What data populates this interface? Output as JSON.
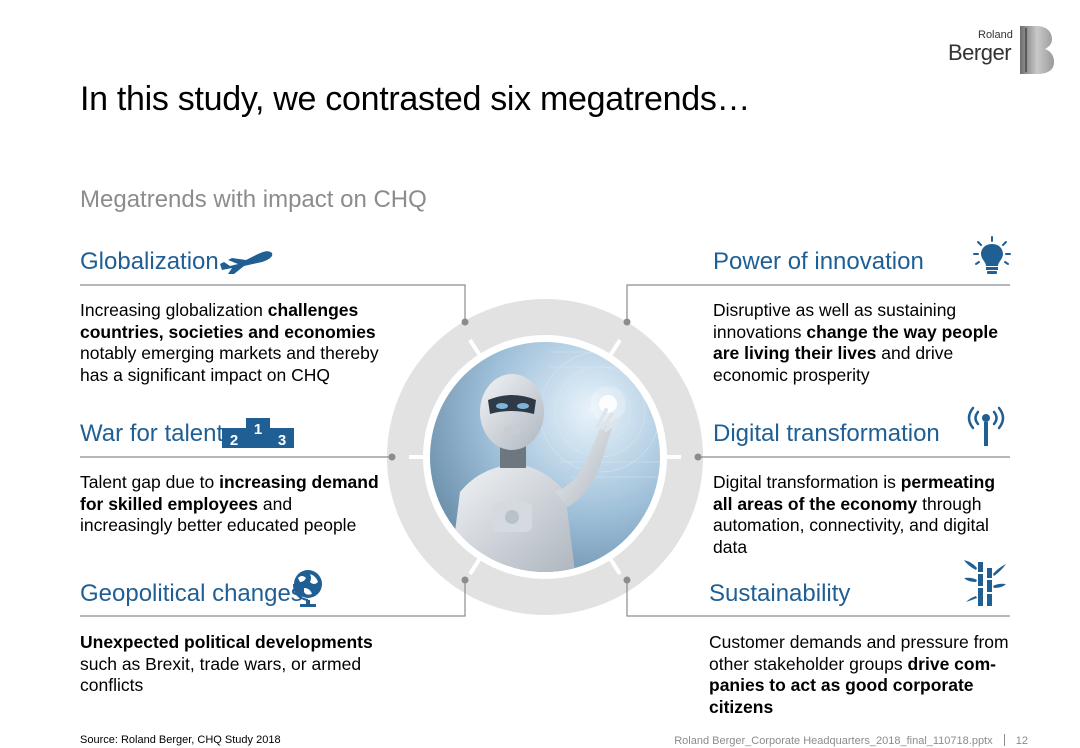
{
  "logo": {
    "small": "Roland",
    "big": "Berger"
  },
  "title": "In this study, we contrasted six megatrends…",
  "subtitle": "Megatrends with impact on CHQ",
  "trends": [
    {
      "title": "Globalization",
      "icon": "airplane-icon",
      "text": [
        {
          "t": "Increasing globalization ",
          "b": false
        },
        {
          "t": "challenges countries, societies and economies",
          "b": true
        },
        {
          "t": " notably emerging markets and thereby has a significant impact on CHQ",
          "b": false
        }
      ]
    },
    {
      "title": "War for talent",
      "icon": "podium-icon",
      "podium": [
        "2",
        "1",
        "3"
      ],
      "text": [
        {
          "t": "Talent gap due to ",
          "b": false
        },
        {
          "t": "increasing demand for skilled employees",
          "b": true
        },
        {
          "t": " and increasingly better educated people",
          "b": false
        }
      ]
    },
    {
      "title": "Geopolitical changes",
      "icon": "globe-icon",
      "text": [
        {
          "t": "Unexpected political developments",
          "b": true
        },
        {
          "t": " such as Brexit, trade wars, or armed conflicts",
          "b": false
        }
      ]
    },
    {
      "title": "Power of innovation",
      "icon": "lightbulb-icon",
      "text": [
        {
          "t": "Disruptive as well as sustaining innovations ",
          "b": false
        },
        {
          "t": "change the way people are living their lives",
          "b": true
        },
        {
          "t": " and drive economic prosperity",
          "b": false
        }
      ]
    },
    {
      "title": "Digital transformation",
      "icon": "antenna-icon",
      "text": [
        {
          "t": "Digital transformation is ",
          "b": false
        },
        {
          "t": "permeating all areas of the economy",
          "b": true
        },
        {
          "t": " through automation, connectivity, and digital data",
          "b": false
        }
      ]
    },
    {
      "title": "Sustainability",
      "icon": "bamboo-icon",
      "text": [
        {
          "t": "Customer demands and pressure from other stakeholder groups ",
          "b": false
        },
        {
          "t": "drive com-panies to act as good corporate citizens",
          "b": true
        }
      ]
    }
  ],
  "image": {
    "subject": "humanoid robot touching a digital interface"
  },
  "footer": {
    "source": "Source: Roland Berger, CHQ Study 2018",
    "file": "Roland Berger_Corporate Headquarters_2018_final_110718.pptx",
    "page": "12"
  },
  "colors": {
    "heading": "#1f5f94",
    "icon": "#1f5f94",
    "ring": "#e2e2e2",
    "line": "#8c8c8c",
    "subtitle": "#8c8c8c"
  }
}
